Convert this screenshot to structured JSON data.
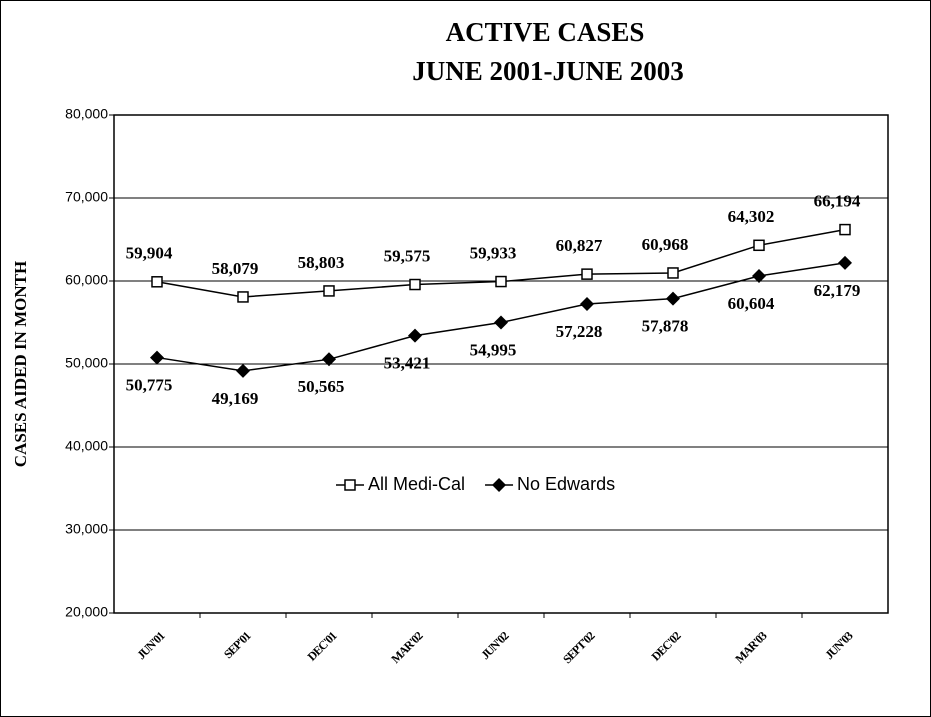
{
  "chart_data": {
    "type": "line",
    "title": [
      "ACTIVE CASES",
      "JUNE 2001-JUNE  2003"
    ],
    "y_label": "CASES AIDED IN MONTH",
    "categories": [
      "JUN'01",
      "SEP'01",
      "DEC'01",
      "MAR'02",
      "JUN'02",
      "SEPT'02",
      "DEC'02",
      "MAR'03",
      "JUN'03"
    ],
    "series": [
      {
        "name": "All Medi-Cal",
        "color": "#000000",
        "marker": "square",
        "values": [
          59904,
          58079,
          58803,
          59575,
          59933,
          60827,
          60968,
          64302,
          66194
        ],
        "value_labels": [
          "59,904",
          "58,079",
          "58,803",
          "59,575",
          "59,933",
          "60,827",
          "60,968",
          "64,302",
          "66,194"
        ]
      },
      {
        "name": "No Edwards",
        "color": "#000000",
        "marker": "diamond",
        "values": [
          50775,
          49169,
          50565,
          53421,
          54995,
          57228,
          57878,
          60604,
          62179
        ],
        "value_labels": [
          "50,775",
          "49,169",
          "50,565",
          "53,421",
          "54,995",
          "57,228",
          "57,878",
          "60,604",
          "62,179"
        ]
      }
    ],
    "ylim": [
      20000,
      80000
    ],
    "yticks": [
      {
        "value": 20000,
        "label": "20,000"
      },
      {
        "value": 30000,
        "label": "30,000"
      },
      {
        "value": 40000,
        "label": "40,000"
      },
      {
        "value": 50000,
        "label": "50,000"
      },
      {
        "value": 60000,
        "label": "60,000"
      },
      {
        "value": 70000,
        "label": "70,000"
      },
      {
        "value": 80000,
        "label": "80,000"
      }
    ],
    "grid": true,
    "legend": "center"
  }
}
